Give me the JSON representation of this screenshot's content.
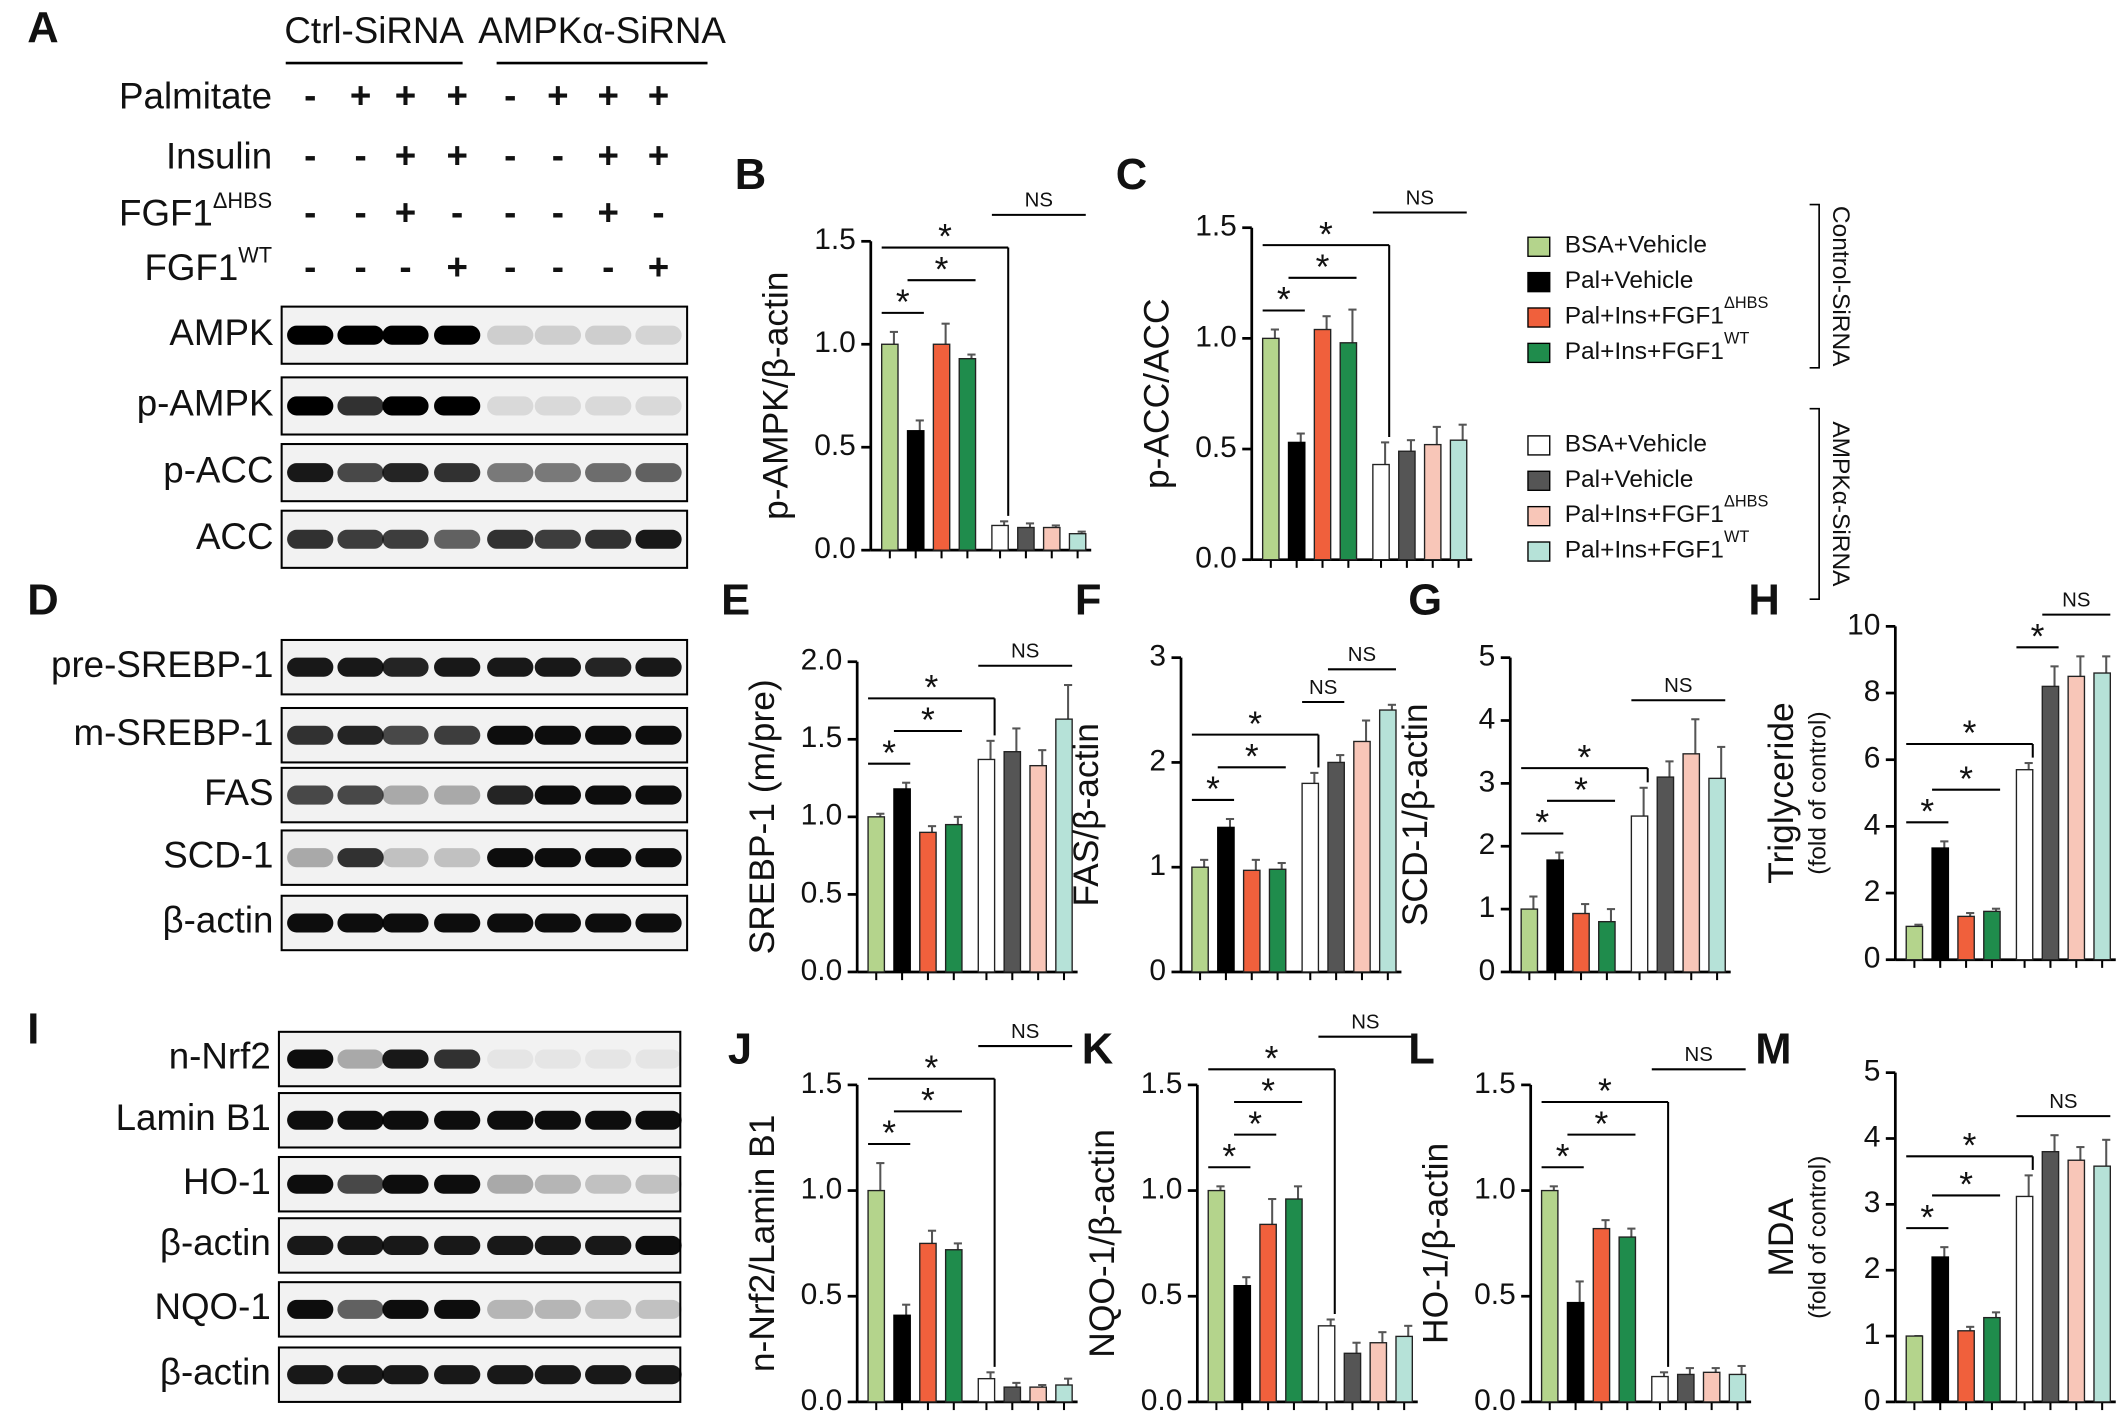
{
  "legend": {
    "groups": [
      {
        "name": "Control-SiRNA",
        "items": [
          {
            "name": "BSA+Vehicle",
            "color": "#b4d48c"
          },
          {
            "name": "Pal+Vehicle",
            "color": "#000000"
          },
          {
            "name": "Pal+Ins+FGF1",
            "sup": "ΔHBS",
            "color": "#f0603c"
          },
          {
            "name": "Pal+Ins+FGF1",
            "sup": "WT",
            "color": "#1f8c4c"
          }
        ]
      },
      {
        "name": "AMPKα-SiRNA",
        "items": [
          {
            "name": "BSA+Vehicle",
            "color": "#ffffff"
          },
          {
            "name": "Pal+Vehicle",
            "color": "#555555"
          },
          {
            "name": "Pal+Ins+FGF1",
            "sup": "ΔHBS",
            "color": "#f8c6b8"
          },
          {
            "name": "Pal+Ins+FGF1",
            "sup": "WT",
            "color": "#b6e2d8"
          }
        ]
      }
    ]
  },
  "blots": [
    {
      "panel": "A",
      "groups": [
        "Ctrl-SiRNA",
        "AMPKα-SiRNA"
      ],
      "treatments": [
        {
          "name": "Palmitate",
          "signs": [
            "-",
            "+",
            "+",
            "+",
            "-",
            "+",
            "+",
            "+"
          ]
        },
        {
          "name": "Insulin",
          "signs": [
            "-",
            "-",
            "+",
            "+",
            "-",
            "-",
            "+",
            "+"
          ]
        },
        {
          "name": "FGF1",
          "sup": "ΔHBS",
          "signs": [
            "-",
            "-",
            "+",
            "-",
            "-",
            "-",
            "+",
            "-"
          ]
        },
        {
          "name": "FGF1",
          "sup": "WT",
          "signs": [
            "-",
            "-",
            "-",
            "+",
            "-",
            "-",
            "-",
            "+"
          ]
        }
      ],
      "rows": [
        "AMPK",
        "p-AMPK",
        "p-ACC",
        "ACC"
      ]
    },
    {
      "panel": "D",
      "rows": [
        "pre-SREBP-1",
        "m-SREBP-1",
        "FAS",
        "SCD-1",
        "β-actin"
      ]
    },
    {
      "panel": "I",
      "rows": [
        "n-Nrf2",
        "Lamin B1",
        "HO-1",
        "β-actin",
        "NQO-1",
        "β-actin"
      ]
    }
  ],
  "chart_data": [
    {
      "type": "bar",
      "title": "B",
      "ylabel": "p-AMPK/β-actin",
      "values": [
        1.0,
        0.58,
        1.0,
        0.93,
        0.12,
        0.11,
        0.11,
        0.08
      ],
      "errors": [
        0.06,
        0.05,
        0.1,
        0.02,
        0.02,
        0.02,
        0.01,
        0.01
      ],
      "ylim": [
        0,
        1.5
      ],
      "yticks": [
        {
          "value": 0,
          "label": "0.0"
        },
        {
          "value": 0.5,
          "label": "0.5"
        },
        {
          "value": 1,
          "label": "1.0"
        },
        {
          "value": 1.5,
          "label": "1.5"
        }
      ],
      "annotations": [
        "*",
        "*",
        "*",
        "NS"
      ]
    },
    {
      "type": "bar",
      "title": "C",
      "ylabel": "p-ACC/ACC",
      "values": [
        1.0,
        0.53,
        1.04,
        0.98,
        0.43,
        0.49,
        0.52,
        0.54
      ],
      "errors": [
        0.04,
        0.04,
        0.06,
        0.15,
        0.1,
        0.05,
        0.08,
        0.07
      ],
      "ylim": [
        0,
        1.5
      ],
      "yticks": [
        {
          "value": 0,
          "label": "0.0"
        },
        {
          "value": 0.5,
          "label": "0.5"
        },
        {
          "value": 1,
          "label": "1.0"
        },
        {
          "value": 1.5,
          "label": "1.5"
        }
      ],
      "annotations": [
        "*",
        "*",
        "*",
        "NS"
      ]
    },
    {
      "type": "bar",
      "title": "E",
      "ylabel": "SREBP-1 (m/pre)",
      "values": [
        1.0,
        1.18,
        0.9,
        0.95,
        1.37,
        1.42,
        1.33,
        1.63
      ],
      "errors": [
        0.02,
        0.04,
        0.04,
        0.05,
        0.12,
        0.15,
        0.1,
        0.22
      ],
      "ylim": [
        0,
        2
      ],
      "yticks": [
        {
          "value": 0,
          "label": "0.0"
        },
        {
          "value": 0.5,
          "label": "0.5"
        },
        {
          "value": 1,
          "label": "1.0"
        },
        {
          "value": 1.5,
          "label": "1.5"
        },
        {
          "value": 2,
          "label": "2.0"
        }
      ],
      "annotations": [
        "*",
        "*",
        "*",
        "NS"
      ]
    },
    {
      "type": "bar",
      "title": "F",
      "ylabel": "FAS/β-actin",
      "values": [
        1.0,
        1.38,
        0.97,
        0.98,
        1.8,
        2.0,
        2.2,
        2.5
      ],
      "errors": [
        0.07,
        0.08,
        0.1,
        0.06,
        0.1,
        0.07,
        0.2,
        0.05
      ],
      "ylim": [
        0,
        3
      ],
      "yticks": [
        0,
        1,
        2,
        3
      ],
      "annotations": [
        "*",
        "*",
        "*",
        "NS",
        "NS"
      ]
    },
    {
      "type": "bar",
      "title": "G",
      "ylabel": "SCD-1/β-actin",
      "values": [
        1.0,
        1.78,
        0.93,
        0.8,
        2.48,
        3.1,
        3.47,
        3.08
      ],
      "errors": [
        0.2,
        0.12,
        0.15,
        0.2,
        0.45,
        0.25,
        0.55,
        0.5
      ],
      "ylim": [
        0,
        5
      ],
      "yticks": [
        0,
        1,
        2,
        3,
        4,
        5
      ],
      "annotations": [
        "*",
        "*",
        "*",
        "NS"
      ]
    },
    {
      "type": "bar",
      "title": "H",
      "ylabel": "Triglyceride",
      "ylabel_note": "(fold of control)",
      "values": [
        1.0,
        3.35,
        1.3,
        1.45,
        5.7,
        8.2,
        8.5,
        8.6
      ],
      "errors": [
        0.05,
        0.2,
        0.1,
        0.08,
        0.2,
        0.6,
        0.6,
        0.5
      ],
      "ylim": [
        0,
        10
      ],
      "yticks": [
        0,
        2,
        4,
        6,
        8,
        10
      ],
      "annotations": [
        "*",
        "*",
        "*",
        "*",
        "NS"
      ]
    },
    {
      "type": "bar",
      "title": "J",
      "ylabel": "n-Nrf2/Lamin B1",
      "values": [
        1.0,
        0.41,
        0.75,
        0.72,
        0.11,
        0.07,
        0.07,
        0.08
      ],
      "errors": [
        0.13,
        0.05,
        0.06,
        0.03,
        0.03,
        0.02,
        0.01,
        0.03
      ],
      "ylim": [
        0,
        1.5
      ],
      "yticks": [
        {
          "value": 0,
          "label": "0.0"
        },
        {
          "value": 0.5,
          "label": "0.5"
        },
        {
          "value": 1,
          "label": "1.0"
        },
        {
          "value": 1.5,
          "label": "1.5"
        }
      ],
      "annotations": [
        "*",
        "*",
        "*",
        "NS"
      ]
    },
    {
      "type": "bar",
      "title": "K",
      "ylabel": "NQO-1/β-actin",
      "values": [
        1.0,
        0.55,
        0.84,
        0.96,
        0.36,
        0.23,
        0.28,
        0.31
      ],
      "errors": [
        0.02,
        0.04,
        0.12,
        0.06,
        0.03,
        0.05,
        0.05,
        0.05
      ],
      "ylim": [
        0,
        1.5
      ],
      "yticks": [
        {
          "value": 0,
          "label": "0.0"
        },
        {
          "value": 0.5,
          "label": "0.5"
        },
        {
          "value": 1,
          "label": "1.0"
        },
        {
          "value": 1.5,
          "label": "1.5"
        }
      ],
      "annotations": [
        "*",
        "*",
        "*",
        "*",
        "NS"
      ]
    },
    {
      "type": "bar",
      "title": "L",
      "ylabel": "HO-1/β-actin",
      "values": [
        1.0,
        0.47,
        0.82,
        0.78,
        0.12,
        0.13,
        0.14,
        0.13
      ],
      "errors": [
        0.02,
        0.1,
        0.04,
        0.04,
        0.02,
        0.03,
        0.02,
        0.04
      ],
      "ylim": [
        0,
        1.5
      ],
      "yticks": [
        {
          "value": 0,
          "label": "0.0"
        },
        {
          "value": 0.5,
          "label": "0.5"
        },
        {
          "value": 1,
          "label": "1.0"
        },
        {
          "value": 1.5,
          "label": "1.5"
        }
      ],
      "annotations": [
        "*",
        "*",
        "*",
        "NS"
      ]
    },
    {
      "type": "bar",
      "title": "M",
      "ylabel": "MDA",
      "ylabel_note": "(fold of control)",
      "values": [
        1.0,
        2.2,
        1.08,
        1.28,
        3.12,
        3.8,
        3.67,
        3.58
      ],
      "errors": [
        0.0,
        0.15,
        0.06,
        0.08,
        0.32,
        0.25,
        0.2,
        0.4
      ],
      "ylim": [
        0,
        5
      ],
      "yticks": [
        0,
        1,
        2,
        3,
        4,
        5
      ],
      "annotations": [
        "*",
        "*",
        "*",
        "NS"
      ]
    }
  ]
}
